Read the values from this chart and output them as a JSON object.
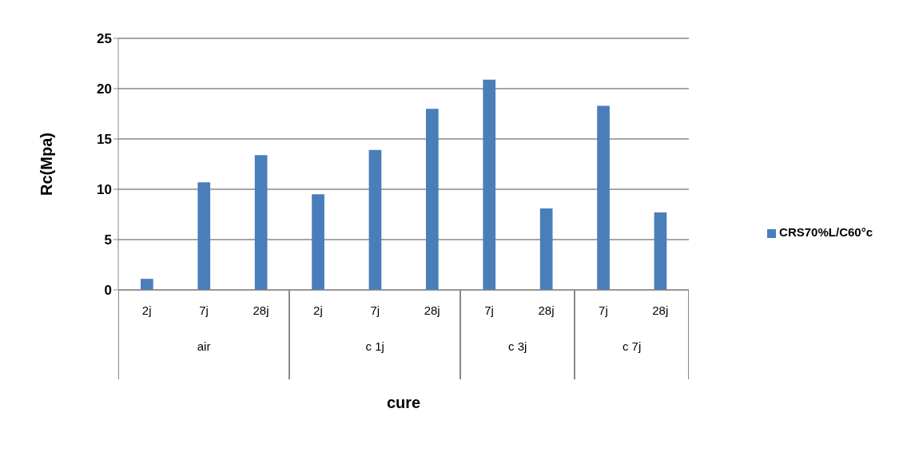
{
  "chart_data": {
    "type": "bar",
    "xlabel": "cure",
    "ylabel": "Rc(Mpa)",
    "categories": [
      "2j",
      "7j",
      "28j",
      "2j",
      "7j",
      "28j",
      "7j",
      "28j",
      "7j",
      "28j"
    ],
    "series": [
      {
        "name": "CRS70%L/C60°c",
        "color": "#4a7ebb",
        "values": [
          1.1,
          10.7,
          13.4,
          9.5,
          13.9,
          18.0,
          20.9,
          8.1,
          18.3,
          7.7
        ]
      }
    ],
    "annotations": [
      "air",
      "c 1j",
      "c 3j",
      "c 7j"
    ],
    "ylim": [
      0,
      25
    ],
    "yticks": [
      0,
      5,
      10,
      15,
      20,
      25
    ],
    "grid": "y",
    "legend": "right"
  }
}
